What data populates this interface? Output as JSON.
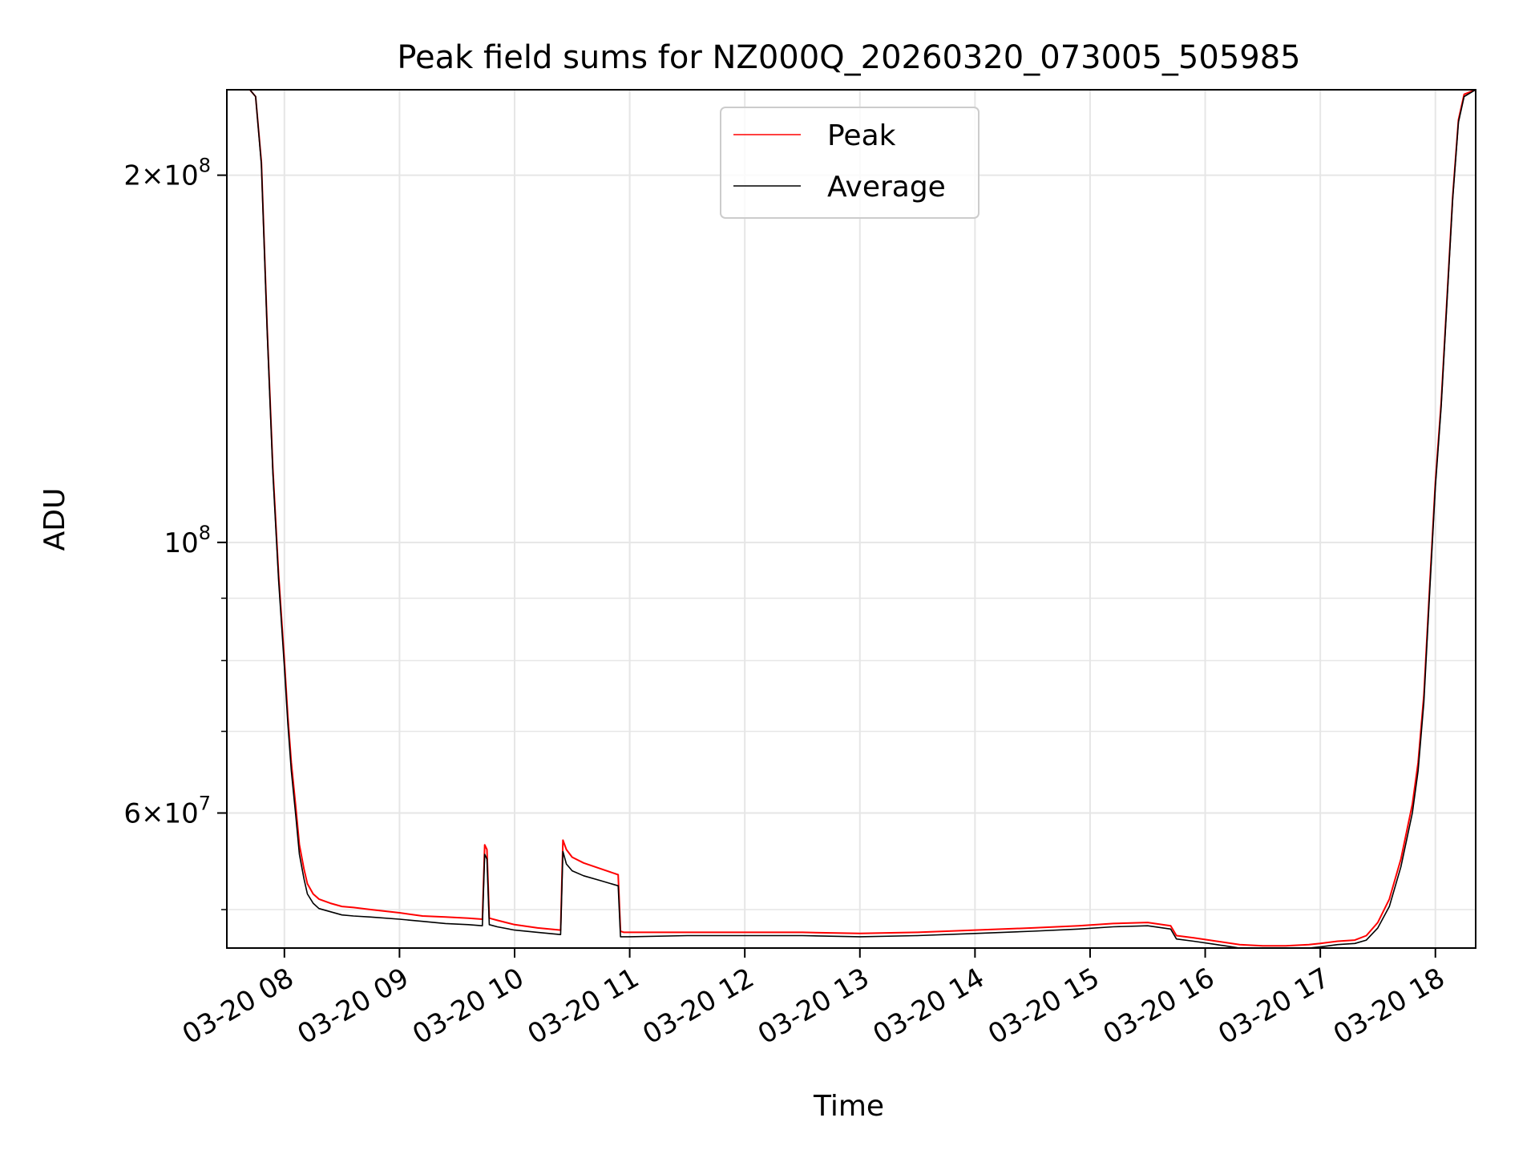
{
  "colors": {
    "peak": "#ff0000",
    "average": "#000000",
    "grid": "#e6e6e6",
    "axes": "#000000",
    "legend_border": "#cccccc"
  },
  "chart_data": {
    "type": "line",
    "title": "Peak field sums for NZ000Q_20260320_073005_505985",
    "xlabel": "Time",
    "ylabel": "ADU",
    "y_scale": "log",
    "x_unit": "hours since 03-20 00:00",
    "xlim": [
      7.5,
      18.35
    ],
    "ylim": [
      46500000,
      235000000
    ],
    "grid": true,
    "legend_position": "upper center",
    "x_ticks": [
      {
        "value": 8,
        "label": "03-20 08"
      },
      {
        "value": 9,
        "label": "03-20 09"
      },
      {
        "value": 10,
        "label": "03-20 10"
      },
      {
        "value": 11,
        "label": "03-20 11"
      },
      {
        "value": 12,
        "label": "03-20 12"
      },
      {
        "value": 13,
        "label": "03-20 13"
      },
      {
        "value": 14,
        "label": "03-20 14"
      },
      {
        "value": 15,
        "label": "03-20 15"
      },
      {
        "value": 16,
        "label": "03-20 16"
      },
      {
        "value": 17,
        "label": "03-20 17"
      },
      {
        "value": 18,
        "label": "03-20 18"
      }
    ],
    "y_major_ticks": [
      {
        "value": 100000000,
        "base": "10",
        "exp": "8",
        "coef": ""
      },
      {
        "value": 200000000,
        "base": "10",
        "exp": "8",
        "coef": "2"
      },
      {
        "value": 60000000,
        "base": "10",
        "exp": "7",
        "coef": "6"
      }
    ],
    "y_minor_ticks": [
      50000000,
      70000000,
      80000000,
      90000000
    ],
    "series": [
      {
        "name": "Peak",
        "x": [
          7.5,
          7.7,
          7.75,
          7.8,
          7.85,
          7.9,
          7.95,
          8.0,
          8.03,
          8.06,
          8.1,
          8.13,
          8.17,
          8.2,
          8.25,
          8.3,
          8.4,
          8.5,
          8.6,
          8.75,
          9.0,
          9.2,
          9.4,
          9.6,
          9.72,
          9.74,
          9.76,
          9.78,
          9.85,
          10.0,
          10.2,
          10.4,
          10.42,
          10.45,
          10.5,
          10.6,
          10.75,
          10.9,
          10.92,
          10.95,
          11.0,
          11.5,
          12.0,
          12.5,
          13.0,
          13.5,
          14.0,
          14.5,
          14.9,
          15.2,
          15.5,
          15.7,
          15.75,
          15.9,
          16.1,
          16.3,
          16.5,
          16.7,
          16.9,
          17.0,
          17.15,
          17.3,
          17.4,
          17.5,
          17.6,
          17.7,
          17.8,
          17.85,
          17.9,
          17.95,
          18.0,
          18.05,
          18.1,
          18.15,
          18.2,
          18.25,
          18.35
        ],
        "y": [
          235000000,
          235000000,
          232000000,
          205000000,
          150000000,
          115000000,
          94000000,
          80000000,
          72000000,
          66000000,
          60500000,
          56500000,
          54000000,
          52500000,
          51500000,
          51000000,
          50600000,
          50300000,
          50200000,
          50000000,
          49700000,
          49400000,
          49300000,
          49200000,
          49100000,
          56500000,
          56000000,
          49200000,
          49000000,
          48600000,
          48300000,
          48100000,
          57000000,
          56000000,
          55200000,
          54600000,
          54000000,
          53400000,
          48000000,
          47900000,
          47900000,
          47900000,
          47900000,
          47900000,
          47800000,
          47900000,
          48100000,
          48300000,
          48500000,
          48700000,
          48800000,
          48500000,
          47600000,
          47400000,
          47100000,
          46800000,
          46700000,
          46700000,
          46800000,
          46900000,
          47100000,
          47200000,
          47600000,
          48800000,
          51000000,
          55000000,
          61000000,
          66000000,
          75000000,
          92000000,
          112000000,
          130000000,
          158000000,
          192000000,
          222000000,
          233000000,
          235000000
        ]
      },
      {
        "name": "Average",
        "x": [
          7.5,
          7.7,
          7.75,
          7.8,
          7.85,
          7.9,
          7.95,
          8.0,
          8.03,
          8.06,
          8.1,
          8.13,
          8.17,
          8.2,
          8.25,
          8.3,
          8.4,
          8.5,
          8.6,
          8.75,
          9.0,
          9.2,
          9.4,
          9.6,
          9.72,
          9.74,
          9.76,
          9.78,
          9.85,
          10.0,
          10.2,
          10.4,
          10.42,
          10.45,
          10.5,
          10.6,
          10.75,
          10.9,
          10.92,
          10.95,
          11.0,
          11.5,
          12.0,
          12.5,
          13.0,
          13.5,
          14.0,
          14.5,
          14.9,
          15.2,
          15.5,
          15.7,
          15.75,
          15.9,
          16.1,
          16.3,
          16.5,
          16.7,
          16.9,
          17.0,
          17.15,
          17.3,
          17.4,
          17.5,
          17.6,
          17.7,
          17.8,
          17.85,
          17.9,
          17.95,
          18.0,
          18.05,
          18.1,
          18.15,
          18.2,
          18.25,
          18.35
        ],
        "y": [
          235000000,
          235000000,
          232000000,
          204000000,
          149000000,
          114000000,
          93000000,
          79000000,
          71000000,
          65000000,
          59500000,
          55500000,
          53000000,
          51500000,
          50600000,
          50100000,
          49800000,
          49500000,
          49400000,
          49300000,
          49100000,
          48900000,
          48700000,
          48600000,
          48500000,
          55500000,
          55000000,
          48600000,
          48400000,
          48100000,
          47900000,
          47700000,
          55800000,
          54500000,
          53800000,
          53300000,
          52800000,
          52300000,
          47500000,
          47500000,
          47500000,
          47600000,
          47600000,
          47600000,
          47500000,
          47600000,
          47800000,
          48000000,
          48200000,
          48400000,
          48500000,
          48200000,
          47300000,
          47100000,
          46800000,
          46500000,
          46400000,
          46400000,
          46500000,
          46600000,
          46800000,
          46900000,
          47200000,
          48300000,
          50300000,
          54200000,
          60000000,
          65000000,
          74000000,
          91000000,
          111000000,
          129000000,
          157000000,
          191000000,
          221000000,
          232000000,
          235000000
        ]
      }
    ]
  }
}
